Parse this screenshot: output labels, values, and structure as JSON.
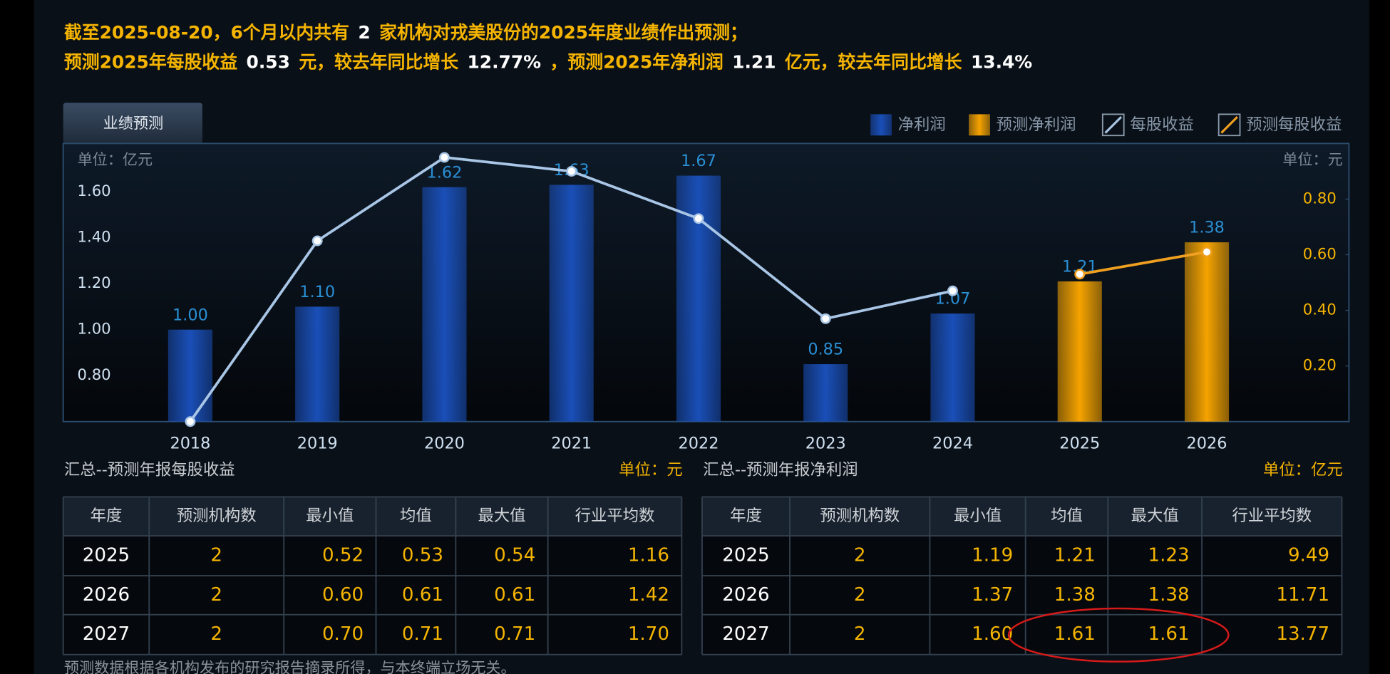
{
  "header": {
    "lines": [
      [
        {
          "text": "截至2025-08-20，6个月以内共有",
          "strong": false
        },
        {
          "text": "2",
          "strong": true
        },
        {
          "text": "家机构对戎美股份的2025年度业绩作出预测；",
          "strong": false
        }
      ],
      [
        {
          "text": "预测2025年每股收益",
          "strong": false
        },
        {
          "text": "0.53",
          "strong": true
        },
        {
          "text": "元，较去年同比增长",
          "strong": false
        },
        {
          "text": "12.77%",
          "strong": true
        },
        {
          "text": "，",
          "strong": false
        },
        {
          "text": "预测2025年净利润",
          "strong": false
        },
        {
          "text": "1.21",
          "strong": true
        },
        {
          "text": "亿元，较去年同比增长",
          "strong": false
        },
        {
          "text": "13.4%",
          "strong": true
        }
      ]
    ]
  },
  "tab": "业绩预测",
  "chart_data": {
    "type": "combo",
    "y_unit": "单位：亿元",
    "y2_unit": "单位：元",
    "categories": [
      "2018",
      "2019",
      "2020",
      "2021",
      "2022",
      "2023",
      "2024",
      "2025",
      "2026"
    ],
    "ylim": [
      0.6,
      1.81
    ],
    "yticks": [
      {
        "value": 0.8,
        "label": "0.80"
      },
      {
        "value": 1.0,
        "label": "1.00"
      },
      {
        "value": 1.2,
        "label": "1.20"
      },
      {
        "value": 1.4,
        "label": "1.40"
      },
      {
        "value": 1.6,
        "label": "1.60"
      }
    ],
    "y2lim": [
      0,
      1.0
    ],
    "y2ticks": [
      {
        "value": 0.2,
        "label": "0.20"
      },
      {
        "value": 0.4,
        "label": "0.40"
      },
      {
        "value": 0.6,
        "label": "0.60"
      },
      {
        "value": 0.8,
        "label": "0.80"
      }
    ],
    "grid": true,
    "legend": "top-right",
    "series": [
      {
        "name": "净利润",
        "type": "bar",
        "color": "#1a4fb8",
        "values": [
          1.0,
          1.1,
          1.62,
          1.63,
          1.67,
          0.85,
          1.07,
          null,
          null
        ],
        "value_labels": [
          "1.00",
          "1.10",
          "1.62",
          "1.63",
          "1.67",
          "0.85",
          "1.07",
          null,
          null
        ]
      },
      {
        "name": "预测净利润",
        "type": "bar",
        "color": "#f5a300",
        "values": [
          null,
          null,
          null,
          null,
          null,
          null,
          null,
          1.21,
          1.38
        ],
        "value_labels": [
          null,
          null,
          null,
          null,
          null,
          null,
          null,
          "1.21",
          "1.38"
        ]
      },
      {
        "name": "每股收益",
        "type": "line",
        "axis": "y2",
        "color": "#a9c6e6",
        "values": [
          0.0,
          0.65,
          0.95,
          0.9,
          0.73,
          0.37,
          0.47,
          null,
          null
        ]
      },
      {
        "name": "预测每股收益",
        "type": "line",
        "axis": "y2",
        "color": "#f0a020",
        "values": [
          null,
          null,
          null,
          null,
          null,
          null,
          null,
          0.53,
          0.61
        ]
      }
    ]
  },
  "tables": [
    {
      "title": "汇总--预测年报每股收益",
      "unit": "单位：元",
      "columns": [
        "年度",
        "预测机构数",
        "最小值",
        "均值",
        "最大值",
        "行业平均数"
      ],
      "rows": [
        [
          "2025",
          "2",
          "0.52",
          "0.53",
          "0.54",
          "1.16"
        ],
        [
          "2026",
          "2",
          "0.60",
          "0.61",
          "0.61",
          "1.42"
        ],
        [
          "2027",
          "2",
          "0.70",
          "0.71",
          "0.71",
          "1.70"
        ]
      ]
    },
    {
      "title": "汇总--预测年报净利润",
      "unit": "单位：亿元",
      "columns": [
        "年度",
        "预测机构数",
        "最小值",
        "均值",
        "最大值",
        "行业平均数"
      ],
      "rows": [
        [
          "2025",
          "2",
          "1.19",
          "1.21",
          "1.23",
          "9.49"
        ],
        [
          "2026",
          "2",
          "1.37",
          "1.38",
          "1.38",
          "11.71"
        ],
        [
          "2027",
          "2",
          "1.60",
          "1.61",
          "1.61",
          "13.77"
        ]
      ]
    }
  ],
  "note": "预测数据根据各机构发布的研究报告摘录所得，与本终端立场无关。"
}
